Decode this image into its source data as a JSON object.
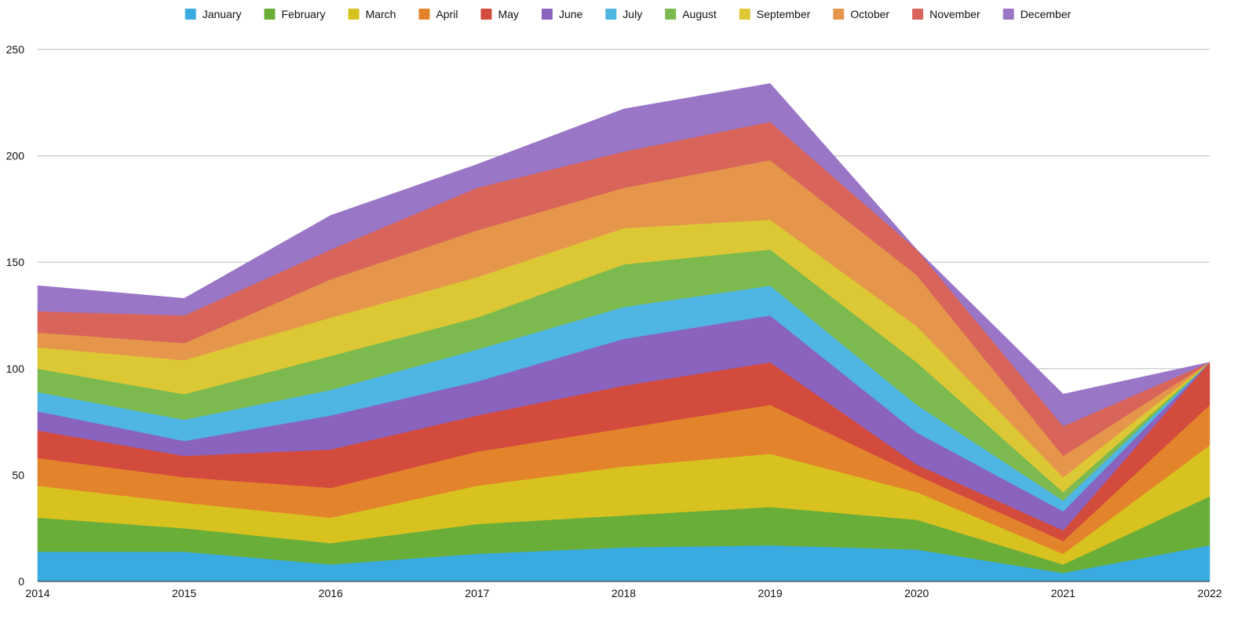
{
  "chart_data": {
    "type": "area",
    "stacked": true,
    "x": [
      "2014",
      "2015",
      "2016",
      "2017",
      "2018",
      "2019",
      "2020",
      "2021",
      "2022"
    ],
    "ylim": [
      0,
      250
    ],
    "yticks": [
      0,
      50,
      100,
      150,
      200,
      250
    ],
    "grid": true,
    "legend_position": "top",
    "series": [
      {
        "name": "January",
        "color": "#3aabe0",
        "values": [
          14,
          14,
          8,
          13,
          16,
          17,
          15,
          4,
          17
        ]
      },
      {
        "name": "February",
        "color": "#6aae3a",
        "values": [
          16,
          11,
          10,
          14,
          15,
          18,
          14,
          4,
          23
        ]
      },
      {
        "name": "March",
        "color": "#d7c21f",
        "values": [
          15,
          12,
          12,
          18,
          23,
          25,
          13,
          5,
          24
        ]
      },
      {
        "name": "April",
        "color": "#e3832c",
        "values": [
          13,
          12,
          14,
          16,
          18,
          23,
          8,
          6,
          19
        ]
      },
      {
        "name": "May",
        "color": "#d24b3c",
        "values": [
          13,
          10,
          18,
          17,
          20,
          20,
          5,
          5,
          20
        ]
      },
      {
        "name": "June",
        "color": "#8a63be",
        "values": [
          9,
          7,
          16,
          16,
          22,
          22,
          15,
          9,
          0
        ]
      },
      {
        "name": "July",
        "color": "#4fb5e3",
        "values": [
          9,
          10,
          12,
          15,
          15,
          14,
          13,
          5,
          0
        ]
      },
      {
        "name": "August",
        "color": "#7cba4f",
        "values": [
          11,
          12,
          16,
          15,
          20,
          17,
          20,
          4,
          0
        ]
      },
      {
        "name": "September",
        "color": "#dcc834",
        "values": [
          10,
          16,
          18,
          19,
          17,
          14,
          17,
          7,
          0
        ]
      },
      {
        "name": "October",
        "color": "#e5964b",
        "values": [
          7,
          8,
          18,
          22,
          19,
          28,
          24,
          10,
          0
        ]
      },
      {
        "name": "November",
        "color": "#d9645a",
        "values": [
          10,
          13,
          14,
          20,
          17,
          18,
          12,
          14,
          0
        ]
      },
      {
        "name": "December",
        "color": "#9a76c6",
        "values": [
          12,
          8,
          16,
          11,
          20,
          18,
          0,
          15,
          0
        ]
      }
    ]
  }
}
